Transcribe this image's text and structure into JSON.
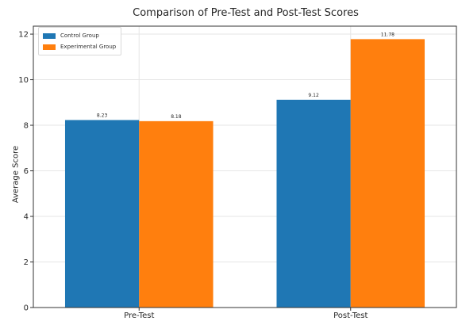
{
  "chart_data": {
    "type": "bar",
    "title": "Comparison of Pre-Test and Post-Test Scores",
    "xlabel": "",
    "ylabel": "Average Score",
    "categories": [
      "Pre-Test",
      "Post-Test"
    ],
    "series": [
      {
        "name": "Control Group",
        "values": [
          8.23,
          9.12
        ],
        "value_labels": [
          "8.23",
          "9.12"
        ],
        "color": "#1f77b4"
      },
      {
        "name": "Experimental Group",
        "values": [
          8.18,
          11.78
        ],
        "value_labels": [
          "8.18",
          "11.78"
        ],
        "color": "#ff7f0e"
      }
    ],
    "ylim": [
      0,
      12.35
    ],
    "yticks": [
      0,
      2,
      4,
      6,
      8,
      10,
      12
    ],
    "grid": true,
    "legend_position": "top-left"
  }
}
